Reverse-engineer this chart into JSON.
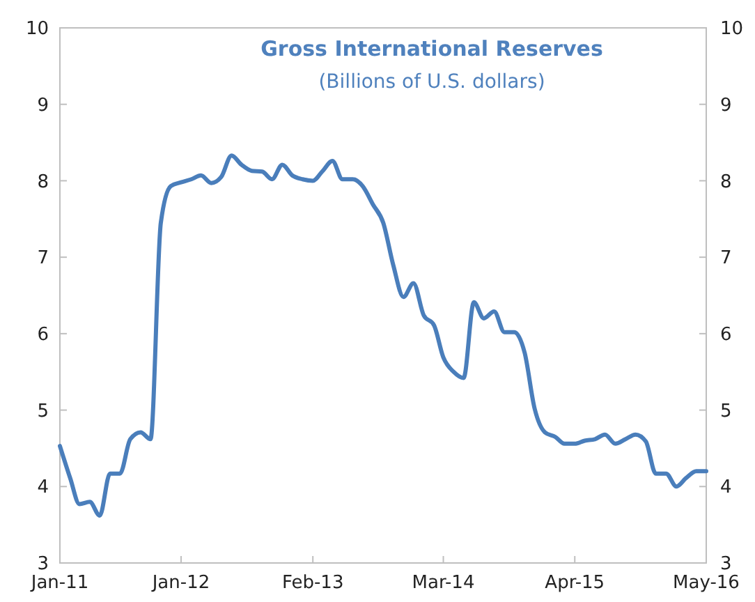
{
  "chart_data": {
    "type": "line",
    "title": "Gross International Reserves",
    "subtitle": "(Billions of U.S. dollars)",
    "x": [
      "2011-01",
      "2011-02",
      "2011-03",
      "2011-04",
      "2011-05",
      "2011-06",
      "2011-07",
      "2011-08",
      "2011-09",
      "2011-10",
      "2011-11",
      "2011-12",
      "2012-01",
      "2012-02",
      "2012-03",
      "2012-04",
      "2012-05",
      "2012-06",
      "2012-07",
      "2012-08",
      "2012-09",
      "2012-10",
      "2012-11",
      "2012-12",
      "2013-01",
      "2013-02",
      "2013-03",
      "2013-04",
      "2013-05",
      "2013-06",
      "2013-07",
      "2013-08",
      "2013-09",
      "2013-10",
      "2013-11",
      "2013-12",
      "2014-01",
      "2014-02",
      "2014-03",
      "2014-04",
      "2014-05",
      "2014-06",
      "2014-07",
      "2014-08",
      "2014-09",
      "2014-10",
      "2014-11",
      "2014-12",
      "2015-01",
      "2015-02",
      "2015-03",
      "2015-04",
      "2015-05",
      "2015-06",
      "2015-07",
      "2015-08",
      "2015-09",
      "2015-10",
      "2015-11",
      "2015-12",
      "2016-01",
      "2016-02",
      "2016-03",
      "2016-04",
      "2016-05"
    ],
    "series": [
      {
        "color": "#4a7ebb",
        "values": [
          4.53,
          4.11,
          3.77,
          3.8,
          3.62,
          4.17,
          4.17,
          4.62,
          4.71,
          4.62,
          7.45,
          7.93,
          7.98,
          8.02,
          8.07,
          7.97,
          8.05,
          8.33,
          8.21,
          8.13,
          8.12,
          8.02,
          8.21,
          8.07,
          8.02,
          8.0,
          8.12,
          8.26,
          8.02,
          8.02,
          7.93,
          7.69,
          7.45,
          6.9,
          6.48,
          6.66,
          6.24,
          6.11,
          5.69,
          5.5,
          5.42,
          6.41,
          6.2,
          6.29,
          6.02,
          6.02,
          5.75,
          5.02,
          4.71,
          4.65,
          4.56,
          4.56,
          4.6,
          4.62,
          4.68,
          4.56,
          4.62,
          4.68,
          4.59,
          4.17,
          4.17,
          4.0,
          4.11,
          4.2,
          4.2
        ]
      }
    ],
    "xlim": [
      "2011-01",
      "2016-05"
    ],
    "xticks": [
      {
        "value": "2011-01",
        "label": "Jan-11"
      },
      {
        "value": "2012-01",
        "label": "Jan-12"
      },
      {
        "value": "2013-02",
        "label": "Feb-13"
      },
      {
        "value": "2014-03",
        "label": "Mar-14"
      },
      {
        "value": "2015-04",
        "label": "Apr-15"
      },
      {
        "value": "2016-05",
        "label": "May-16"
      }
    ],
    "ylim": [
      3,
      10
    ],
    "yticks": [
      3,
      4,
      5,
      6,
      7,
      8,
      9,
      10
    ],
    "y2lim": [
      3,
      10
    ],
    "y2ticks": [
      3,
      4,
      5,
      6,
      7,
      8,
      9,
      10
    ],
    "grid": false,
    "marker": "none",
    "line_style": "solid"
  }
}
